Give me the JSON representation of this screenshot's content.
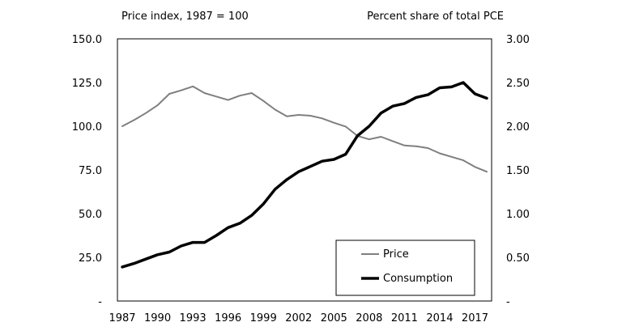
{
  "chart_data": {
    "type": "line",
    "left_axis_title": "Price index, 1987 = 100",
    "right_axis_title": "Percent share of total PCE",
    "left_ylim": [
      0,
      150
    ],
    "right_ylim": [
      0,
      3
    ],
    "left_ticks": [
      {
        "value": 0,
        "label": "-"
      },
      {
        "value": 25,
        "label": "25.0"
      },
      {
        "value": 50,
        "label": "50.0"
      },
      {
        "value": 75,
        "label": "75.0"
      },
      {
        "value": 100,
        "label": "100.0"
      },
      {
        "value": 125,
        "label": "125.0"
      },
      {
        "value": 150,
        "label": "150.0"
      }
    ],
    "right_ticks": [
      {
        "value": 0,
        "label": "-"
      },
      {
        "value": 0.5,
        "label": "0.50"
      },
      {
        "value": 1,
        "label": "1.00"
      },
      {
        "value": 1.5,
        "label": "1.50"
      },
      {
        "value": 2,
        "label": "2.00"
      },
      {
        "value": 2.5,
        "label": "2.50"
      },
      {
        "value": 3,
        "label": "3.00"
      }
    ],
    "x_range": [
      1987,
      2018
    ],
    "x_ticks": [
      "1987",
      "1990",
      "1993",
      "1996",
      "1999",
      "2002",
      "2005",
      "2008",
      "2011",
      "2014",
      "2017"
    ],
    "legend_position": "bottom-right",
    "series": [
      {
        "name": "Price",
        "axis": "left",
        "color": "#7f7f7f",
        "x": [
          1987,
          1988,
          1989,
          1990,
          1991,
          1992,
          1993,
          1994,
          1995,
          1996,
          1997,
          1998,
          1999,
          2000,
          2001,
          2002,
          2003,
          2004,
          2005,
          2006,
          2007,
          2008,
          2009,
          2010,
          2011,
          2012,
          2013,
          2014,
          2015,
          2016,
          2017,
          2018
        ],
        "values": [
          100,
          103.5,
          107.5,
          112,
          118.5,
          120.5,
          122.8,
          119,
          117,
          115,
          117.5,
          119,
          114.5,
          109.5,
          105.7,
          106.5,
          106,
          104.5,
          102,
          99.8,
          94.5,
          92.5,
          94,
          91.5,
          89,
          88.5,
          87.5,
          84.5,
          82.5,
          80.5,
          76.7,
          74
        ]
      },
      {
        "name": "Consumption",
        "axis": "right",
        "color": "#000000",
        "x": [
          1987,
          1988,
          1989,
          1990,
          1991,
          1992,
          1993,
          1994,
          1995,
          1996,
          1997,
          1998,
          1999,
          2000,
          2001,
          2002,
          2003,
          2004,
          2005,
          2006,
          2007,
          2008,
          2009,
          2010,
          2011,
          2012,
          2013,
          2014,
          2015,
          2016,
          2017,
          2018
        ],
        "values": [
          0.39,
          0.43,
          0.48,
          0.53,
          0.56,
          0.63,
          0.67,
          0.67,
          0.75,
          0.84,
          0.89,
          0.98,
          1.11,
          1.28,
          1.39,
          1.48,
          1.54,
          1.6,
          1.62,
          1.68,
          1.89,
          2.0,
          2.15,
          2.23,
          2.26,
          2.33,
          2.36,
          2.44,
          2.45,
          2.5,
          2.37,
          2.32
        ]
      }
    ]
  }
}
